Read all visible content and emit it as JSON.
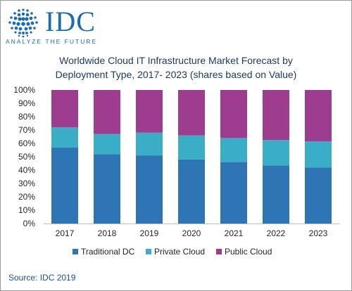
{
  "logo": {
    "brand": "IDC",
    "tagline": "ANALYZE THE FUTURE"
  },
  "chart_data": {
    "type": "bar",
    "stacked": true,
    "title_line1": "Worldwide Cloud IT Infrastructure Market Forecast by",
    "title_line2": "Deployment Type, 2017- 2023 (shares based on Value)",
    "categories": [
      "2017",
      "2018",
      "2019",
      "2020",
      "2021",
      "2022",
      "2023"
    ],
    "y_ticks": [
      "0%",
      "10%",
      "20%",
      "30%",
      "40%",
      "50%",
      "60%",
      "70%",
      "80%",
      "90%",
      "100%"
    ],
    "ylim": [
      0,
      100
    ],
    "grid": false,
    "legend_position": "bottom",
    "series": [
      {
        "name": "Traditional DC",
        "color": "#2e75b6",
        "values": [
          57,
          52,
          51,
          48,
          46,
          43.5,
          42
        ]
      },
      {
        "name": "Private Cloud",
        "color": "#3aaec6",
        "values": [
          15,
          15,
          17,
          18,
          18,
          19,
          19.5
        ]
      },
      {
        "name": "Public Cloud",
        "color": "#9e3d8f",
        "values": [
          28,
          33,
          32,
          34,
          36,
          37.5,
          38.5
        ]
      }
    ]
  },
  "source": "Source: IDC 2019"
}
